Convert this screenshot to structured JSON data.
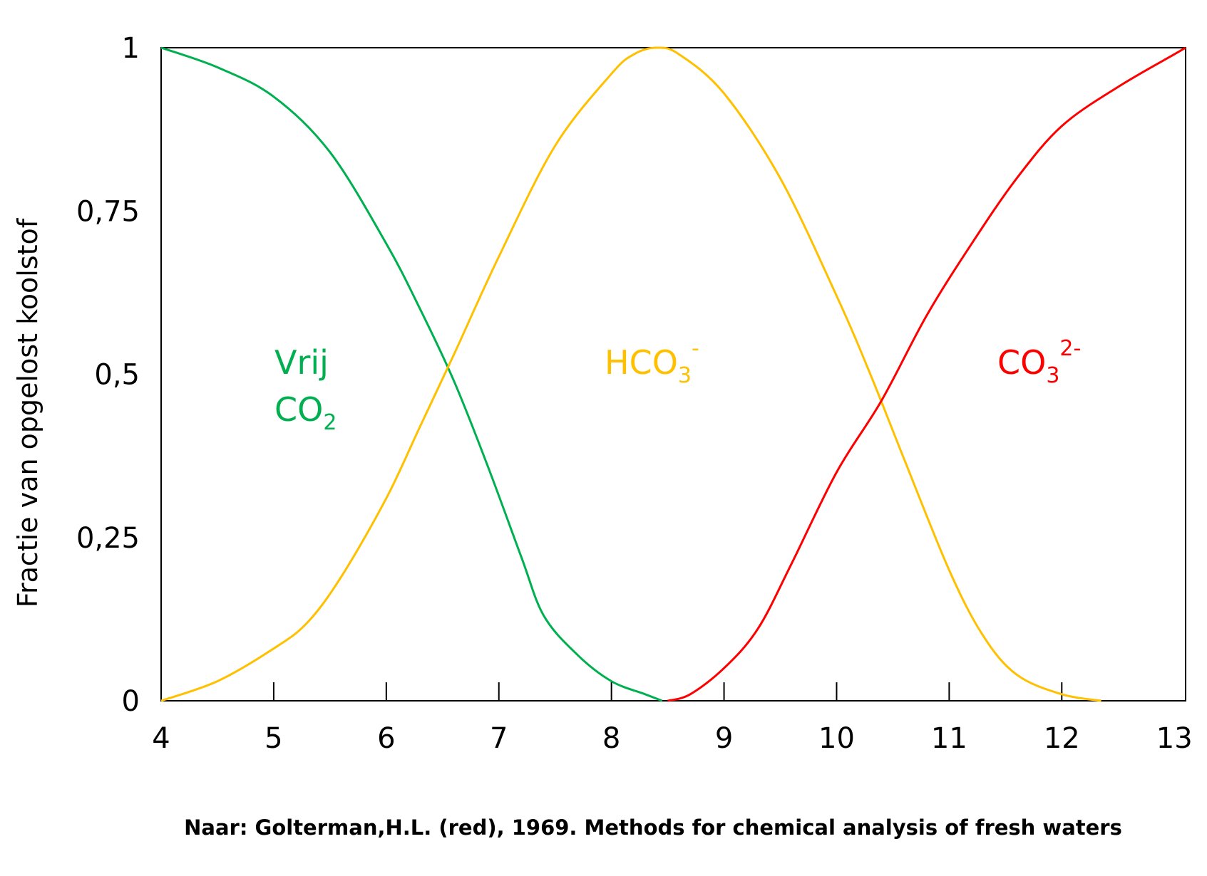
{
  "chart_data": {
    "type": "line",
    "ylabel": "Fractie van opgelost koolstof",
    "xlabel": "",
    "xlim": [
      4,
      13.1
    ],
    "ylim": [
      0,
      1
    ],
    "x_ticks": [
      4,
      5,
      6,
      7,
      8,
      9,
      10,
      11,
      12,
      13
    ],
    "x_tick_labels": [
      "4",
      "5",
      "6",
      "7",
      "8",
      "9",
      "10",
      "11",
      "12",
      "13"
    ],
    "y_ticks": [
      0,
      0.25,
      0.5,
      0.75,
      1
    ],
    "y_tick_labels": [
      "0",
      "0,25",
      "0,5",
      "0,75",
      "1"
    ],
    "grid": false,
    "source_note": "Naar: Golterman,H.L. (red), 1969. Methods for chemical analysis of fresh waters",
    "series": [
      {
        "name": "Vrij CO2",
        "label_lines": [
          {
            "main": "Vrij",
            "sub": "",
            "sup": ""
          },
          {
            "main": "CO",
            "sub": "2",
            "sup": ""
          }
        ],
        "color": "#00b050",
        "points": [
          [
            4.0,
            1.0
          ],
          [
            4.5,
            0.97
          ],
          [
            5.0,
            0.925
          ],
          [
            5.5,
            0.84
          ],
          [
            6.0,
            0.7
          ],
          [
            6.3,
            0.6
          ],
          [
            6.6,
            0.49
          ],
          [
            6.9,
            0.36
          ],
          [
            7.2,
            0.22
          ],
          [
            7.4,
            0.13
          ],
          [
            7.7,
            0.07
          ],
          [
            8.0,
            0.03
          ],
          [
            8.3,
            0.01
          ],
          [
            8.45,
            0.0
          ]
        ]
      },
      {
        "name": "HCO3-",
        "label_lines": [
          {
            "main": "HCO",
            "sub": "3",
            "sup": "-"
          }
        ],
        "color": "#ffc000",
        "points": [
          [
            4.0,
            0.0
          ],
          [
            4.5,
            0.03
          ],
          [
            5.0,
            0.08
          ],
          [
            5.3,
            0.12
          ],
          [
            5.6,
            0.19
          ],
          [
            6.0,
            0.31
          ],
          [
            6.3,
            0.42
          ],
          [
            6.6,
            0.53
          ],
          [
            7.0,
            0.68
          ],
          [
            7.5,
            0.85
          ],
          [
            8.0,
            0.96
          ],
          [
            8.2,
            0.99
          ],
          [
            8.4,
            1.0
          ],
          [
            8.6,
            0.99
          ],
          [
            9.0,
            0.93
          ],
          [
            9.5,
            0.8
          ],
          [
            10.0,
            0.62
          ],
          [
            10.3,
            0.5
          ],
          [
            10.6,
            0.37
          ],
          [
            11.0,
            0.2
          ],
          [
            11.3,
            0.1
          ],
          [
            11.6,
            0.04
          ],
          [
            12.0,
            0.01
          ],
          [
            12.35,
            0.0
          ]
        ]
      },
      {
        "name": "CO3 2-",
        "label_lines": [
          {
            "main": "CO",
            "sub": "3",
            "sup": "2-"
          }
        ],
        "color": "#ff0000",
        "points": [
          [
            8.5,
            0.0
          ],
          [
            8.7,
            0.01
          ],
          [
            9.0,
            0.05
          ],
          [
            9.3,
            0.11
          ],
          [
            9.6,
            0.21
          ],
          [
            10.0,
            0.35
          ],
          [
            10.4,
            0.46
          ],
          [
            10.8,
            0.59
          ],
          [
            11.2,
            0.7
          ],
          [
            11.6,
            0.8
          ],
          [
            12.0,
            0.88
          ],
          [
            12.5,
            0.94
          ],
          [
            13.0,
            0.99
          ],
          [
            13.1,
            1.0
          ]
        ]
      }
    ]
  }
}
